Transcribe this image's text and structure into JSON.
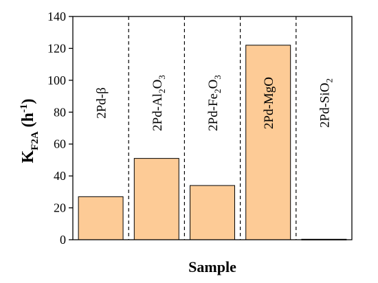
{
  "chart_data": {
    "type": "bar",
    "xlabel": "Sample",
    "ylabel": {
      "main": "K",
      "sub": "F2A",
      "unit_open": " (h",
      "unit_sup": "-1",
      "unit_close": ")"
    },
    "ylim": [
      0,
      140
    ],
    "yticks": [
      "0",
      "20",
      "40",
      "60",
      "80",
      "100",
      "120",
      "140"
    ],
    "categories": [
      {
        "parts": [
          {
            "t": "2Pd-β"
          }
        ]
      },
      {
        "parts": [
          {
            "t": "2Pd-Al"
          },
          {
            "t": "2",
            "sub": true
          },
          {
            "t": "O"
          },
          {
            "t": "3",
            "sub": true
          }
        ]
      },
      {
        "parts": [
          {
            "t": "2Pd-Fe"
          },
          {
            "t": "2",
            "sub": true
          },
          {
            "t": "O"
          },
          {
            "t": "3",
            "sub": true
          }
        ]
      },
      {
        "parts": [
          {
            "t": "2Pd-MgO"
          }
        ]
      },
      {
        "parts": [
          {
            "t": "2Pd-SiO"
          },
          {
            "t": "2",
            "sub": true
          }
        ]
      }
    ],
    "values": [
      27,
      51,
      34,
      122,
      0.3
    ],
    "bar_color": "#FDCB96",
    "grid": false,
    "separators": "dashed vertical lines between categories"
  }
}
